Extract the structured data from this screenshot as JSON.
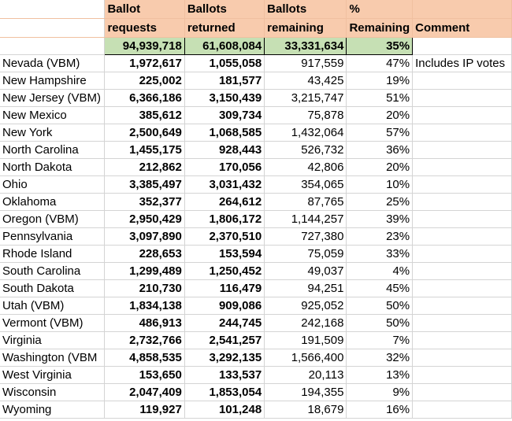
{
  "header": {
    "row1": [
      "Ballot",
      "Ballots",
      "Ballots",
      "%",
      ""
    ],
    "row2": [
      "requests",
      "returned",
      "remaining",
      "Remaining",
      "Comment"
    ]
  },
  "totals": {
    "requests": "94,939,718",
    "returned": "61,608,084",
    "remaining": "33,331,634",
    "pct": "35%"
  },
  "rows": [
    {
      "state": "Nevada (VBM)",
      "requests": "1,972,617",
      "returned": "1,055,058",
      "remaining": "917,559",
      "pct": "47%",
      "comment": "Includes IP votes"
    },
    {
      "state": "New Hampshire",
      "requests": "225,002",
      "returned": "181,577",
      "remaining": "43,425",
      "pct": "19%",
      "comment": ""
    },
    {
      "state": "New Jersey (VBM)",
      "requests": "6,366,186",
      "returned": "3,150,439",
      "remaining": "3,215,747",
      "pct": "51%",
      "comment": ""
    },
    {
      "state": "New Mexico",
      "requests": "385,612",
      "returned": "309,734",
      "remaining": "75,878",
      "pct": "20%",
      "comment": ""
    },
    {
      "state": "New York",
      "requests": "2,500,649",
      "returned": "1,068,585",
      "remaining": "1,432,064",
      "pct": "57%",
      "comment": ""
    },
    {
      "state": "North Carolina",
      "requests": "1,455,175",
      "returned": "928,443",
      "remaining": "526,732",
      "pct": "36%",
      "comment": ""
    },
    {
      "state": "North Dakota",
      "requests": "212,862",
      "returned": "170,056",
      "remaining": "42,806",
      "pct": "20%",
      "comment": ""
    },
    {
      "state": "Ohio",
      "requests": "3,385,497",
      "returned": "3,031,432",
      "remaining": "354,065",
      "pct": "10%",
      "comment": ""
    },
    {
      "state": "Oklahoma",
      "requests": "352,377",
      "returned": "264,612",
      "remaining": "87,765",
      "pct": "25%",
      "comment": ""
    },
    {
      "state": "Oregon (VBM)",
      "requests": "2,950,429",
      "returned": "1,806,172",
      "remaining": "1,144,257",
      "pct": "39%",
      "comment": ""
    },
    {
      "state": "Pennsylvania",
      "requests": "3,097,890",
      "returned": "2,370,510",
      "remaining": "727,380",
      "pct": "23%",
      "comment": ""
    },
    {
      "state": "Rhode Island",
      "requests": "228,653",
      "returned": "153,594",
      "remaining": "75,059",
      "pct": "33%",
      "comment": ""
    },
    {
      "state": "South Carolina",
      "requests": "1,299,489",
      "returned": "1,250,452",
      "remaining": "49,037",
      "pct": "4%",
      "comment": ""
    },
    {
      "state": "South Dakota",
      "requests": "210,730",
      "returned": "116,479",
      "remaining": "94,251",
      "pct": "45%",
      "comment": ""
    },
    {
      "state": "Utah (VBM)",
      "requests": "1,834,138",
      "returned": "909,086",
      "remaining": "925,052",
      "pct": "50%",
      "comment": ""
    },
    {
      "state": "Vermont (VBM)",
      "requests": "486,913",
      "returned": "244,745",
      "remaining": "242,168",
      "pct": "50%",
      "comment": ""
    },
    {
      "state": "Virginia",
      "requests": "2,732,766",
      "returned": "2,541,257",
      "remaining": "191,509",
      "pct": "7%",
      "comment": ""
    },
    {
      "state": "Washington (VBM",
      "requests": "4,858,535",
      "returned": "3,292,135",
      "remaining": "1,566,400",
      "pct": "32%",
      "comment": ""
    },
    {
      "state": "West Virginia",
      "requests": "153,650",
      "returned": "133,537",
      "remaining": "20,113",
      "pct": "13%",
      "comment": ""
    },
    {
      "state": "Wisconsin",
      "requests": "2,047,409",
      "returned": "1,853,054",
      "remaining": "194,355",
      "pct": "9%",
      "comment": ""
    },
    {
      "state": "Wyoming",
      "requests": "119,927",
      "returned": "101,248",
      "remaining": "18,679",
      "pct": "16%",
      "comment": ""
    }
  ]
}
